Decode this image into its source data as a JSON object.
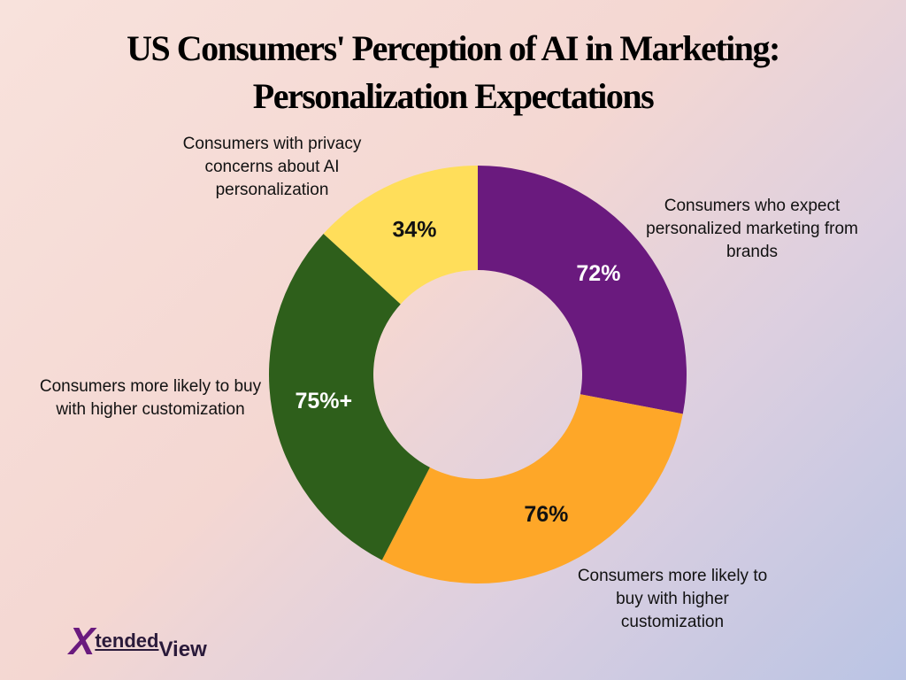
{
  "chart_data": {
    "type": "pie",
    "donut": true,
    "title": "US Consumers' Perception of AI in Marketing: Personalization Expectations",
    "categories": [
      "Consumers who expect personalized marketing from brands",
      "Consumers more likely to buy with higher customization",
      "Consumers more likely to buy with higher customization",
      "Consumers with privacy concerns about AI personalization"
    ],
    "values": [
      72,
      76,
      75,
      34
    ],
    "value_labels": [
      "72%",
      "76%",
      "75%+",
      "34%"
    ],
    "colors": [
      "#6a1a7e",
      "#fea728",
      "#2e5f1b",
      "#ffde5a"
    ],
    "value_label_colors": [
      "#ffffff",
      "#111111",
      "#ffffff",
      "#111111"
    ]
  },
  "logo": [
    "X",
    "tended",
    "View"
  ]
}
